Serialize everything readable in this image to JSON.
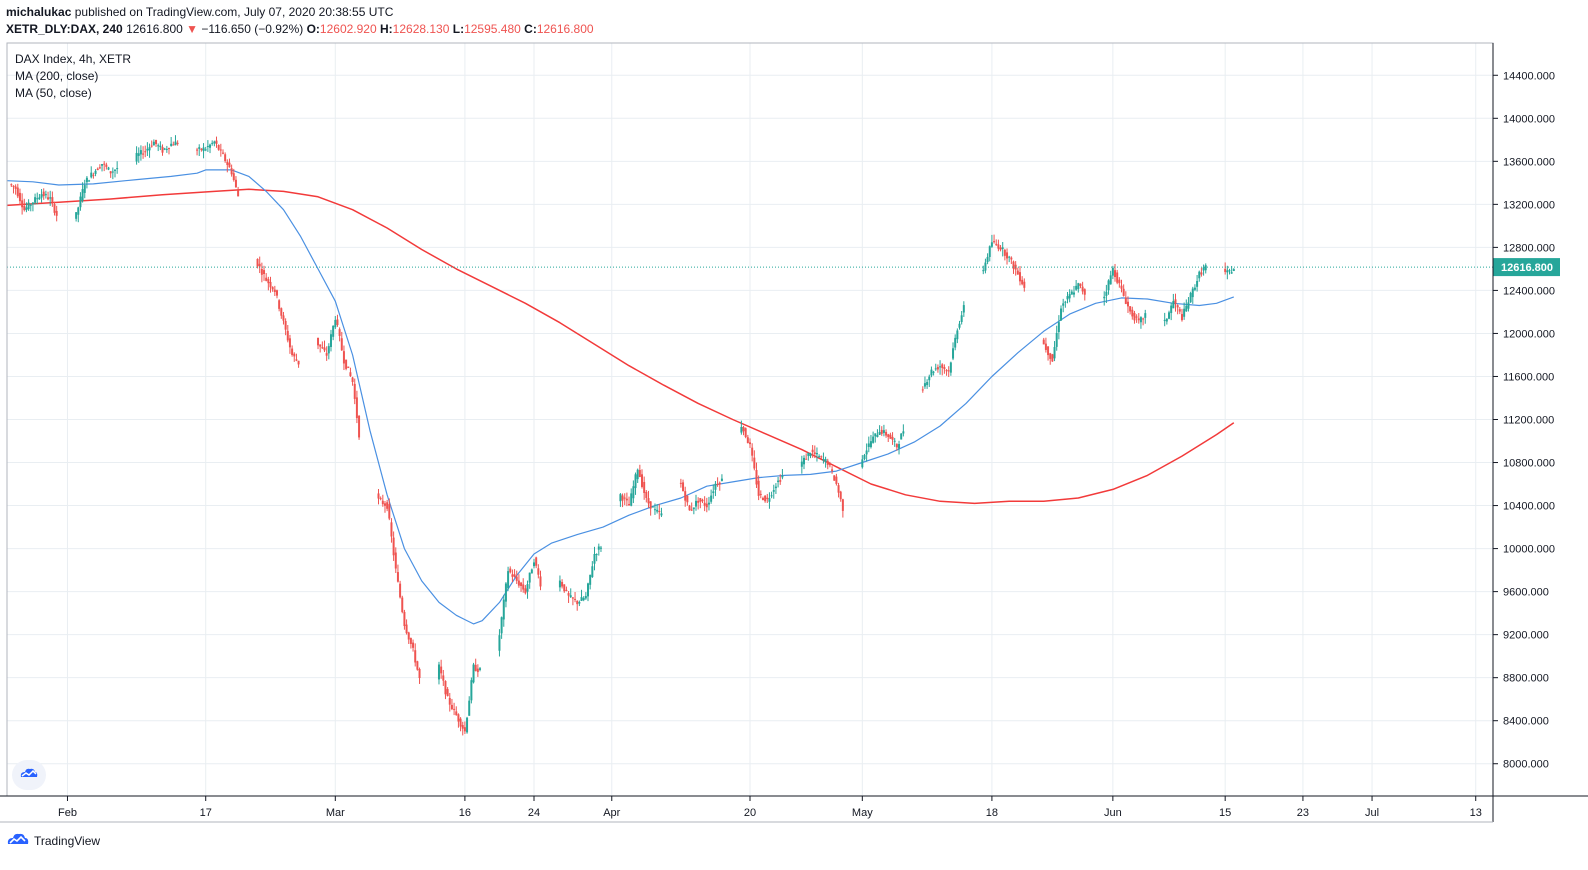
{
  "header": {
    "publisher": "michalukac",
    "published_text": "published on TradingView.com, July 07, 2020 20:38:55 UTC",
    "symbol": "XETR_DLY:DAX, 240",
    "last": "12616.800",
    "change_arrow": "▼",
    "change": "−116.650 (−0.92%)",
    "o_label": "O:",
    "o_value": "12602.920",
    "h_label": "H:",
    "h_value": "12628.130",
    "l_label": "L:",
    "l_value": "12595.480",
    "c_label": "C:",
    "c_value": "12616.800"
  },
  "legend": {
    "instrument": "DAX Index, 4h, XETR",
    "ma200": "MA (200, close)",
    "ma50": "MA (50, close)"
  },
  "footer": {
    "brand": "TradingView",
    "logo_icon": "tradingview-logo-icon"
  },
  "colors": {
    "up": "#26a69a",
    "down": "#ef5350",
    "ma200": "#f23a3a",
    "ma50": "#4a90e2",
    "grid": "#e9eef2"
  },
  "chart_data": {
    "type": "candlestick",
    "title": "DAX Index, 4h, XETR",
    "y_ticks": [
      14400,
      14000,
      13600,
      13200,
      12800,
      12400,
      12000,
      11600,
      11200,
      10800,
      10400,
      10000,
      9600,
      9200,
      8800,
      8400,
      8000
    ],
    "y_tick_labels": [
      "14400.000",
      "14000.000",
      "13600.000",
      "13200.000",
      "12800.000",
      "12400.000",
      "12000.000",
      "11600.000",
      "11200.000",
      "10800.000",
      "10400.000",
      "10000.000",
      "9600.000",
      "9200.000",
      "8800.000",
      "8400.000",
      "8000.000"
    ],
    "ylim": [
      7700,
      14700
    ],
    "x_ticks": [
      {
        "label": "Feb",
        "day": 6
      },
      {
        "label": "17",
        "day": 22
      },
      {
        "label": "Mar",
        "day": 37
      },
      {
        "label": "16",
        "day": 52
      },
      {
        "label": "24",
        "day": 60
      },
      {
        "label": "Apr",
        "day": 69
      },
      {
        "label": "20",
        "day": 85
      },
      {
        "label": "May",
        "day": 98
      },
      {
        "label": "18",
        "day": 113
      },
      {
        "label": "Jun",
        "day": 127
      },
      {
        "label": "15",
        "day": 140
      },
      {
        "label": "23",
        "day": 149
      },
      {
        "label": "Jul",
        "day": 157
      },
      {
        "label": "13",
        "day": 169
      }
    ],
    "xlim": [
      -1,
      171
    ],
    "last_price": 12616.8,
    "last_price_label": "12616.800",
    "path_points": [
      [
        -1,
        13400
      ],
      [
        0,
        13350
      ],
      [
        1,
        13150
      ],
      [
        3,
        13300
      ],
      [
        4,
        13250
      ],
      [
        5,
        13050
      ],
      [
        6,
        13000
      ],
      [
        7,
        13100
      ],
      [
        8,
        13400
      ],
      [
        9,
        13500
      ],
      [
        10,
        13580
      ],
      [
        11,
        13500
      ],
      [
        12,
        13550
      ],
      [
        13,
        13450
      ],
      [
        14,
        13650
      ],
      [
        15,
        13700
      ],
      [
        16,
        13780
      ],
      [
        17,
        13700
      ],
      [
        18,
        13760
      ],
      [
        19,
        13780
      ],
      [
        20,
        13700
      ],
      [
        21,
        13700
      ],
      [
        22,
        13720
      ],
      [
        23,
        13780
      ],
      [
        24,
        13650
      ],
      [
        25,
        13500
      ],
      [
        26,
        13200
      ],
      [
        27,
        12800
      ],
      [
        28,
        12650
      ],
      [
        29,
        12500
      ],
      [
        30,
        12400
      ],
      [
        31,
        12100
      ],
      [
        32,
        11800
      ],
      [
        33,
        11700
      ],
      [
        34,
        12100
      ],
      [
        35,
        11900
      ],
      [
        36,
        11800
      ],
      [
        37,
        12150
      ],
      [
        38,
        11750
      ],
      [
        39,
        11550
      ],
      [
        40,
        10900
      ],
      [
        41,
        10700
      ],
      [
        42,
        10450
      ],
      [
        43,
        10400
      ],
      [
        44,
        9800
      ],
      [
        45,
        9300
      ],
      [
        46,
        9050
      ],
      [
        47,
        8700
      ],
      [
        48,
        8400
      ],
      [
        49,
        8900
      ],
      [
        50,
        8600
      ],
      [
        51,
        8450
      ],
      [
        52,
        8300
      ],
      [
        53,
        8900
      ],
      [
        54,
        8850
      ],
      [
        55,
        8600
      ],
      [
        56,
        9200
      ],
      [
        57,
        9800
      ],
      [
        58,
        9700
      ],
      [
        59,
        9600
      ],
      [
        60,
        9900
      ],
      [
        61,
        9600
      ],
      [
        62,
        9500
      ],
      [
        63,
        9700
      ],
      [
        64,
        9550
      ],
      [
        65,
        9500
      ],
      [
        66,
        9550
      ],
      [
        67,
        9950
      ],
      [
        68,
        10050
      ],
      [
        69,
        10200
      ],
      [
        70,
        10500
      ],
      [
        71,
        10400
      ],
      [
        72,
        10750
      ],
      [
        73,
        10450
      ],
      [
        74,
        10350
      ],
      [
        75,
        10300
      ],
      [
        76,
        10700
      ],
      [
        77,
        10600
      ],
      [
        78,
        10350
      ],
      [
        79,
        10450
      ],
      [
        80,
        10400
      ],
      [
        81,
        10600
      ],
      [
        82,
        10650
      ],
      [
        83,
        10900
      ],
      [
        84,
        11150
      ],
      [
        85,
        10950
      ],
      [
        86,
        10500
      ],
      [
        87,
        10450
      ],
      [
        88,
        10600
      ],
      [
        89,
        10700
      ],
      [
        90,
        10650
      ],
      [
        91,
        10800
      ],
      [
        92,
        10900
      ],
      [
        93,
        10850
      ],
      [
        94,
        10800
      ],
      [
        95,
        10600
      ],
      [
        96,
        10300
      ],
      [
        97,
        10400
      ],
      [
        98,
        10850
      ],
      [
        99,
        11000
      ],
      [
        100,
        11100
      ],
      [
        101,
        11050
      ],
      [
        102,
        10950
      ],
      [
        103,
        11150
      ],
      [
        104,
        11350
      ],
      [
        105,
        11500
      ],
      [
        106,
        11650
      ],
      [
        107,
        11700
      ],
      [
        108,
        11650
      ],
      [
        109,
        12050
      ],
      [
        110,
        12300
      ],
      [
        111,
        12500
      ],
      [
        112,
        12600
      ],
      [
        113,
        12850
      ],
      [
        114,
        12800
      ],
      [
        115,
        12700
      ],
      [
        116,
        12550
      ],
      [
        117,
        12400
      ],
      [
        118,
        12100
      ],
      [
        119,
        11900
      ],
      [
        120,
        11750
      ],
      [
        121,
        12250
      ],
      [
        122,
        12350
      ],
      [
        123,
        12450
      ],
      [
        124,
        12350
      ],
      [
        125,
        12250
      ],
      [
        126,
        12350
      ],
      [
        127,
        12600
      ],
      [
        128,
        12400
      ],
      [
        129,
        12200
      ],
      [
        130,
        12100
      ],
      [
        131,
        12200
      ],
      [
        132,
        12250
      ],
      [
        133,
        12100
      ],
      [
        134,
        12300
      ],
      [
        135,
        12150
      ],
      [
        136,
        12350
      ],
      [
        137,
        12550
      ],
      [
        138,
        12650
      ],
      [
        139,
        12750
      ],
      [
        140,
        12550
      ],
      [
        141,
        12600
      ]
    ],
    "ma50_points": [
      [
        -1,
        13420
      ],
      [
        2,
        13410
      ],
      [
        5,
        13380
      ],
      [
        9,
        13390
      ],
      [
        14,
        13430
      ],
      [
        18,
        13460
      ],
      [
        21,
        13490
      ],
      [
        22,
        13520
      ],
      [
        25,
        13520
      ],
      [
        27,
        13460
      ],
      [
        29,
        13320
      ],
      [
        31,
        13150
      ],
      [
        33,
        12900
      ],
      [
        35,
        12600
      ],
      [
        37,
        12300
      ],
      [
        39,
        11800
      ],
      [
        41,
        11100
      ],
      [
        43,
        10500
      ],
      [
        45,
        10000
      ],
      [
        47,
        9700
      ],
      [
        49,
        9500
      ],
      [
        51,
        9380
      ],
      [
        52,
        9340
      ],
      [
        53,
        9300
      ],
      [
        54,
        9330
      ],
      [
        56,
        9500
      ],
      [
        58,
        9750
      ],
      [
        60,
        9950
      ],
      [
        62,
        10050
      ],
      [
        65,
        10130
      ],
      [
        68,
        10200
      ],
      [
        71,
        10310
      ],
      [
        74,
        10400
      ],
      [
        77,
        10470
      ],
      [
        80,
        10580
      ],
      [
        83,
        10620
      ],
      [
        86,
        10660
      ],
      [
        89,
        10680
      ],
      [
        92,
        10690
      ],
      [
        95,
        10720
      ],
      [
        98,
        10800
      ],
      [
        101,
        10880
      ],
      [
        104,
        10990
      ],
      [
        107,
        11140
      ],
      [
        110,
        11350
      ],
      [
        113,
        11600
      ],
      [
        116,
        11820
      ],
      [
        119,
        12020
      ],
      [
        122,
        12180
      ],
      [
        125,
        12280
      ],
      [
        128,
        12330
      ],
      [
        131,
        12320
      ],
      [
        134,
        12280
      ],
      [
        137,
        12260
      ],
      [
        139,
        12280
      ],
      [
        141,
        12340
      ]
    ],
    "ma200_points": [
      [
        -1,
        13190
      ],
      [
        5,
        13220
      ],
      [
        11,
        13250
      ],
      [
        17,
        13290
      ],
      [
        23,
        13320
      ],
      [
        27,
        13340
      ],
      [
        31,
        13320
      ],
      [
        35,
        13270
      ],
      [
        39,
        13150
      ],
      [
        43,
        12980
      ],
      [
        47,
        12780
      ],
      [
        51,
        12600
      ],
      [
        55,
        12440
      ],
      [
        59,
        12280
      ],
      [
        63,
        12100
      ],
      [
        67,
        11900
      ],
      [
        71,
        11700
      ],
      [
        75,
        11520
      ],
      [
        79,
        11350
      ],
      [
        83,
        11200
      ],
      [
        87,
        11060
      ],
      [
        91,
        10920
      ],
      [
        95,
        10760
      ],
      [
        99,
        10600
      ],
      [
        103,
        10500
      ],
      [
        107,
        10440
      ],
      [
        111,
        10420
      ],
      [
        115,
        10440
      ],
      [
        119,
        10440
      ],
      [
        123,
        10470
      ],
      [
        127,
        10550
      ],
      [
        131,
        10680
      ],
      [
        135,
        10860
      ],
      [
        139,
        11060
      ],
      [
        141,
        11170
      ]
    ]
  }
}
